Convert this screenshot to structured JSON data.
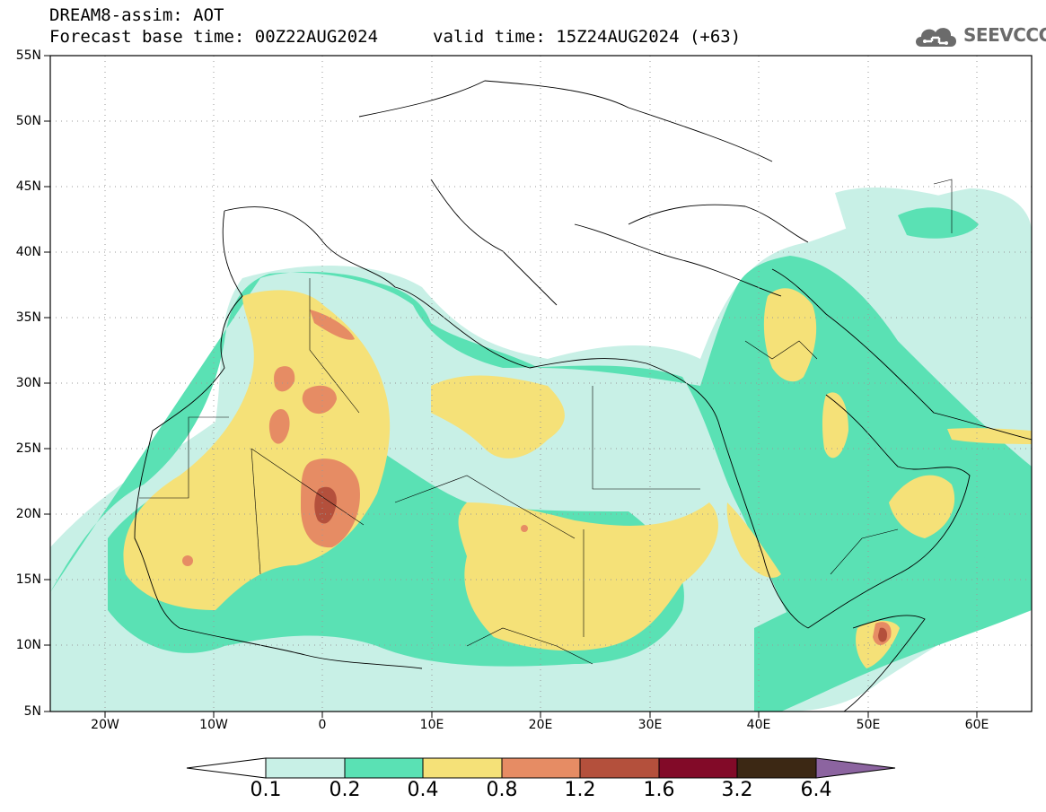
{
  "header": {
    "line1": "DREAM8-assim: AOT",
    "line2": "Forecast base time: 00Z22AUG2024",
    "line3": "valid time: 15Z24AUG2024 (+63)"
  },
  "logo": {
    "text": "SEEVCCC",
    "icon": "cloud-icon"
  },
  "map": {
    "lat_labels": [
      "55N",
      "50N",
      "45N",
      "40N",
      "35N",
      "30N",
      "25N",
      "20N",
      "15N",
      "10N",
      "5N"
    ],
    "lon_labels": [
      "20W",
      "10W",
      "0",
      "10E",
      "20E",
      "30E",
      "40E",
      "50E",
      "60E"
    ]
  },
  "colorbar": {
    "labels": [
      "0.1",
      "0.2",
      "0.4",
      "0.8",
      "1.2",
      "1.6",
      "3.2",
      "6.4"
    ],
    "colors": [
      "#c8f0e6",
      "#5ae1b4",
      "#f5e178",
      "#e68c64",
      "#b4503c",
      "#820a28",
      "#3c2814",
      "#8c64a0"
    ]
  }
}
